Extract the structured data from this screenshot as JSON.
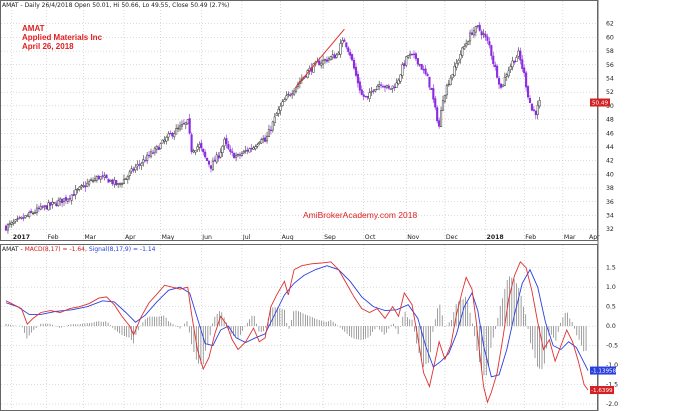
{
  "header": {
    "price_info": "AMAT - Daily 26/4/2018 Open 50.01, Hi 50.66, Lo 49.55, Close 50.49 (2.7%)",
    "macd_prefix": "AMAT - ",
    "macd_label": "MACD(8,17) = -1.64,",
    "signal_label": "Signal(8,17,9) = -1.14"
  },
  "annotations": {
    "ticker": "AMAT",
    "company": "Applied Materials Inc",
    "date": "April 26, 2018",
    "watermark": "AmiBrokerAcademy.com  2018"
  },
  "colors": {
    "candle_up": "#333333",
    "candle_down": "#8a2be2",
    "macd_line": "#e03030",
    "signal_line": "#2a3fe0",
    "histogram": "#777777",
    "trendline": "#e03030",
    "grid": "#b8b8b8",
    "price_badge": "#d42020",
    "signal_badge": "#2a3fe0",
    "macd_badge": "#d42020"
  },
  "badges": {
    "price": "50.49",
    "signal": "-1.13958",
    "macd": "-1.6399"
  },
  "chart_data": [
    {
      "type": "candlestick",
      "title": "AMAT - Daily 26/4/2018 Open 50.01, Hi 50.66, Lo 49.55, Close 50.49 (2.7%)",
      "ylim": [
        31,
        64
      ],
      "yticks": [
        32,
        34,
        36,
        38,
        40,
        42,
        44,
        46,
        48,
        50,
        52,
        54,
        56,
        58,
        60,
        62
      ],
      "xticks": [
        "2017",
        "Feb",
        "Mar",
        "Apr",
        "May",
        "Jun",
        "Jul",
        "Aug",
        "Sep",
        "Oct",
        "Nov",
        "Dec",
        "2018",
        "Feb",
        "Mar",
        "Apr"
      ],
      "grid": true,
      "price_path": [
        {
          "t": 0,
          "v": 32.3
        },
        {
          "t": 5,
          "v": 33.0
        },
        {
          "t": 9,
          "v": 33.6
        },
        {
          "t": 15,
          "v": 34.6
        },
        {
          "t": 20,
          "v": 35.2
        },
        {
          "t": 26,
          "v": 35.8
        },
        {
          "t": 32,
          "v": 36.6
        },
        {
          "t": 38,
          "v": 37.8
        },
        {
          "t": 43,
          "v": 38.8
        },
        {
          "t": 48,
          "v": 39.6
        },
        {
          "t": 53,
          "v": 39.2
        },
        {
          "t": 58,
          "v": 38.4
        },
        {
          "t": 63,
          "v": 39.8
        },
        {
          "t": 67,
          "v": 41.0
        },
        {
          "t": 72,
          "v": 42.2
        },
        {
          "t": 76,
          "v": 43.2
        },
        {
          "t": 81,
          "v": 44.6
        },
        {
          "t": 85,
          "v": 45.8
        },
        {
          "t": 90,
          "v": 46.8
        },
        {
          "t": 94,
          "v": 47.6
        },
        {
          "t": 96,
          "v": 43.6
        },
        {
          "t": 100,
          "v": 44.2
        },
        {
          "t": 103,
          "v": 42.4
        },
        {
          "t": 106,
          "v": 41.2
        },
        {
          "t": 110,
          "v": 42.8
        },
        {
          "t": 113,
          "v": 44.8
        },
        {
          "t": 116,
          "v": 43.0
        },
        {
          "t": 120,
          "v": 42.6
        },
        {
          "t": 124,
          "v": 43.4
        },
        {
          "t": 128,
          "v": 44.0
        },
        {
          "t": 132,
          "v": 45.4
        },
        {
          "t": 134,
          "v": 44.8
        },
        {
          "t": 137,
          "v": 46.8
        },
        {
          "t": 140,
          "v": 48.8
        },
        {
          "t": 144,
          "v": 50.8
        },
        {
          "t": 148,
          "v": 52.2
        },
        {
          "t": 152,
          "v": 53.6
        },
        {
          "t": 156,
          "v": 55.0
        },
        {
          "t": 161,
          "v": 56.2
        },
        {
          "t": 166,
          "v": 56.8
        },
        {
          "t": 171,
          "v": 57.4
        },
        {
          "t": 173,
          "v": 58.8
        },
        {
          "t": 175,
          "v": 59.6
        },
        {
          "t": 178,
          "v": 57.6
        },
        {
          "t": 181,
          "v": 54.4
        },
        {
          "t": 184,
          "v": 51.6
        },
        {
          "t": 187,
          "v": 51.0
        },
        {
          "t": 190,
          "v": 52.6
        },
        {
          "t": 194,
          "v": 53.4
        },
        {
          "t": 198,
          "v": 52.4
        },
        {
          "t": 202,
          "v": 53.2
        },
        {
          "t": 205,
          "v": 55.6
        },
        {
          "t": 208,
          "v": 57.4
        },
        {
          "t": 212,
          "v": 57.0
        },
        {
          "t": 215,
          "v": 55.6
        },
        {
          "t": 218,
          "v": 54.0
        },
        {
          "t": 220,
          "v": 52.2
        },
        {
          "t": 222,
          "v": 49.4
        },
        {
          "t": 224,
          "v": 47.0
        },
        {
          "t": 226,
          "v": 51.2
        },
        {
          "t": 229,
          "v": 53.6
        },
        {
          "t": 232,
          "v": 55.4
        },
        {
          "t": 235,
          "v": 57.6
        },
        {
          "t": 238,
          "v": 59.2
        },
        {
          "t": 241,
          "v": 60.8
        },
        {
          "t": 244,
          "v": 61.4
        },
        {
          "t": 247,
          "v": 60.4
        },
        {
          "t": 250,
          "v": 58.8
        },
        {
          "t": 252,
          "v": 56.4
        },
        {
          "t": 254,
          "v": 54.6
        },
        {
          "t": 256,
          "v": 52.6
        },
        {
          "t": 259,
          "v": 54.8
        },
        {
          "t": 262,
          "v": 56.4
        },
        {
          "t": 265,
          "v": 57.6
        },
        {
          "t": 268,
          "v": 54.6
        },
        {
          "t": 270,
          "v": 51.6
        },
        {
          "t": 272,
          "v": 49.4
        },
        {
          "t": 274,
          "v": 49.1
        },
        {
          "t": 276,
          "v": 50.49
        }
      ],
      "trendline": {
        "from": {
          "t": 150,
          "v": 52.8
        },
        "to": {
          "t": 175,
          "v": 61.2
        }
      }
    },
    {
      "type": "line",
      "title": "AMAT - MACD(8,17) = -1.64, Signal(8,17,9) = -1.14",
      "ylim": [
        -2.05,
        1.8
      ],
      "yticks": [
        -2.0,
        -1.5,
        -1.0,
        -0.5,
        0.0,
        0.5,
        1.0,
        1.5
      ],
      "grid": true,
      "series": [
        {
          "name": "MACD(8,17)",
          "points": [
            {
              "t": 0,
              "v": 0.65
            },
            {
              "t": 4,
              "v": 0.55
            },
            {
              "t": 8,
              "v": 0.45
            },
            {
              "t": 11,
              "v": 0.05
            },
            {
              "t": 14,
              "v": 0.2
            },
            {
              "t": 18,
              "v": 0.35
            },
            {
              "t": 23,
              "v": 0.4
            },
            {
              "t": 28,
              "v": 0.35
            },
            {
              "t": 33,
              "v": 0.45
            },
            {
              "t": 38,
              "v": 0.5
            },
            {
              "t": 43,
              "v": 0.58
            },
            {
              "t": 48,
              "v": 0.72
            },
            {
              "t": 52,
              "v": 0.75
            },
            {
              "t": 56,
              "v": 0.55
            },
            {
              "t": 60,
              "v": 0.25
            },
            {
              "t": 64,
              "v": 0.0
            },
            {
              "t": 66,
              "v": -0.22
            },
            {
              "t": 70,
              "v": 0.25
            },
            {
              "t": 74,
              "v": 0.6
            },
            {
              "t": 78,
              "v": 0.82
            },
            {
              "t": 82,
              "v": 1.05
            },
            {
              "t": 86,
              "v": 1.0
            },
            {
              "t": 90,
              "v": 0.95
            },
            {
              "t": 94,
              "v": 1.0
            },
            {
              "t": 96,
              "v": 0.3
            },
            {
              "t": 99,
              "v": -0.6
            },
            {
              "t": 102,
              "v": -1.1
            },
            {
              "t": 105,
              "v": -0.8
            },
            {
              "t": 108,
              "v": -0.2
            },
            {
              "t": 111,
              "v": 0.25
            },
            {
              "t": 114,
              "v": 0.05
            },
            {
              "t": 117,
              "v": -0.35
            },
            {
              "t": 120,
              "v": -0.6
            },
            {
              "t": 124,
              "v": -0.4
            },
            {
              "t": 128,
              "v": -0.05
            },
            {
              "t": 131,
              "v": -0.4
            },
            {
              "t": 134,
              "v": -0.3
            },
            {
              "t": 137,
              "v": 0.5
            },
            {
              "t": 140,
              "v": 0.8
            },
            {
              "t": 144,
              "v": 1.15
            },
            {
              "t": 146,
              "v": 0.8
            },
            {
              "t": 149,
              "v": 1.45
            },
            {
              "t": 153,
              "v": 1.55
            },
            {
              "t": 158,
              "v": 1.6
            },
            {
              "t": 163,
              "v": 1.62
            },
            {
              "t": 168,
              "v": 1.65
            },
            {
              "t": 172,
              "v": 1.45
            },
            {
              "t": 176,
              "v": 1.1
            },
            {
              "t": 180,
              "v": 0.75
            },
            {
              "t": 184,
              "v": 0.45
            },
            {
              "t": 188,
              "v": 0.35
            },
            {
              "t": 192,
              "v": 0.45
            },
            {
              "t": 196,
              "v": 0.2
            },
            {
              "t": 200,
              "v": 0.5
            },
            {
              "t": 203,
              "v": 0.25
            },
            {
              "t": 206,
              "v": 0.85
            },
            {
              "t": 210,
              "v": 0.55
            },
            {
              "t": 213,
              "v": -0.3
            },
            {
              "t": 216,
              "v": -1.2
            },
            {
              "t": 219,
              "v": -1.55
            },
            {
              "t": 221,
              "v": -1.1
            },
            {
              "t": 224,
              "v": -0.4
            },
            {
              "t": 227,
              "v": -0.85
            },
            {
              "t": 230,
              "v": -0.5
            },
            {
              "t": 233,
              "v": 0.3
            },
            {
              "t": 236,
              "v": 0.9
            },
            {
              "t": 238,
              "v": 1.25
            },
            {
              "t": 241,
              "v": 0.95
            },
            {
              "t": 243,
              "v": 0.2
            },
            {
              "t": 245,
              "v": -0.7
            },
            {
              "t": 247,
              "v": -1.55
            },
            {
              "t": 249,
              "v": -1.95
            },
            {
              "t": 251,
              "v": -1.7
            },
            {
              "t": 254,
              "v": -1.2
            },
            {
              "t": 257,
              "v": -0.3
            },
            {
              "t": 260,
              "v": 0.7
            },
            {
              "t": 263,
              "v": 1.3
            },
            {
              "t": 266,
              "v": 1.65
            },
            {
              "t": 269,
              "v": 1.5
            },
            {
              "t": 272,
              "v": 0.9
            },
            {
              "t": 275,
              "v": 0.1
            },
            {
              "t": 278,
              "v": -0.6
            },
            {
              "t": 281,
              "v": -0.35
            },
            {
              "t": 284,
              "v": -0.9
            },
            {
              "t": 287,
              "v": -0.5
            },
            {
              "t": 290,
              "v": -0.1
            },
            {
              "t": 293,
              "v": -0.4
            },
            {
              "t": 296,
              "v": -0.9
            },
            {
              "t": 299,
              "v": -1.5
            },
            {
              "t": 301,
              "v": -1.64
            }
          ]
        },
        {
          "name": "Signal(8,17,9)",
          "points": [
            {
              "t": 0,
              "v": 0.6
            },
            {
              "t": 6,
              "v": 0.5
            },
            {
              "t": 12,
              "v": 0.3
            },
            {
              "t": 18,
              "v": 0.3
            },
            {
              "t": 26,
              "v": 0.38
            },
            {
              "t": 34,
              "v": 0.42
            },
            {
              "t": 42,
              "v": 0.5
            },
            {
              "t": 50,
              "v": 0.65
            },
            {
              "t": 56,
              "v": 0.62
            },
            {
              "t": 62,
              "v": 0.35
            },
            {
              "t": 67,
              "v": 0.1
            },
            {
              "t": 72,
              "v": 0.28
            },
            {
              "t": 78,
              "v": 0.62
            },
            {
              "t": 84,
              "v": 0.92
            },
            {
              "t": 90,
              "v": 1.0
            },
            {
              "t": 95,
              "v": 0.85
            },
            {
              "t": 99,
              "v": 0.2
            },
            {
              "t": 103,
              "v": -0.45
            },
            {
              "t": 107,
              "v": -0.5
            },
            {
              "t": 111,
              "v": -0.1
            },
            {
              "t": 115,
              "v": 0.0
            },
            {
              "t": 119,
              "v": -0.3
            },
            {
              "t": 124,
              "v": -0.42
            },
            {
              "t": 129,
              "v": -0.3
            },
            {
              "t": 134,
              "v": -0.2
            },
            {
              "t": 139,
              "v": 0.3
            },
            {
              "t": 144,
              "v": 0.8
            },
            {
              "t": 149,
              "v": 1.1
            },
            {
              "t": 154,
              "v": 1.3
            },
            {
              "t": 160,
              "v": 1.45
            },
            {
              "t": 166,
              "v": 1.55
            },
            {
              "t": 172,
              "v": 1.45
            },
            {
              "t": 178,
              "v": 1.15
            },
            {
              "t": 184,
              "v": 0.75
            },
            {
              "t": 190,
              "v": 0.5
            },
            {
              "t": 196,
              "v": 0.4
            },
            {
              "t": 202,
              "v": 0.42
            },
            {
              "t": 208,
              "v": 0.55
            },
            {
              "t": 213,
              "v": 0.2
            },
            {
              "t": 217,
              "v": -0.5
            },
            {
              "t": 221,
              "v": -1.05
            },
            {
              "t": 225,
              "v": -0.9
            },
            {
              "t": 229,
              "v": -0.7
            },
            {
              "t": 233,
              "v": -0.2
            },
            {
              "t": 237,
              "v": 0.5
            },
            {
              "t": 241,
              "v": 0.85
            },
            {
              "t": 244,
              "v": 0.4
            },
            {
              "t": 247,
              "v": -0.5
            },
            {
              "t": 251,
              "v": -1.3
            },
            {
              "t": 255,
              "v": -1.25
            },
            {
              "t": 259,
              "v": -0.6
            },
            {
              "t": 263,
              "v": 0.3
            },
            {
              "t": 267,
              "v": 1.1
            },
            {
              "t": 271,
              "v": 1.45
            },
            {
              "t": 275,
              "v": 1.0
            },
            {
              "t": 279,
              "v": 0.1
            },
            {
              "t": 283,
              "v": -0.5
            },
            {
              "t": 287,
              "v": -0.6
            },
            {
              "t": 291,
              "v": -0.4
            },
            {
              "t": 295,
              "v": -0.55
            },
            {
              "t": 301,
              "v": -1.14
            }
          ]
        }
      ]
    }
  ]
}
